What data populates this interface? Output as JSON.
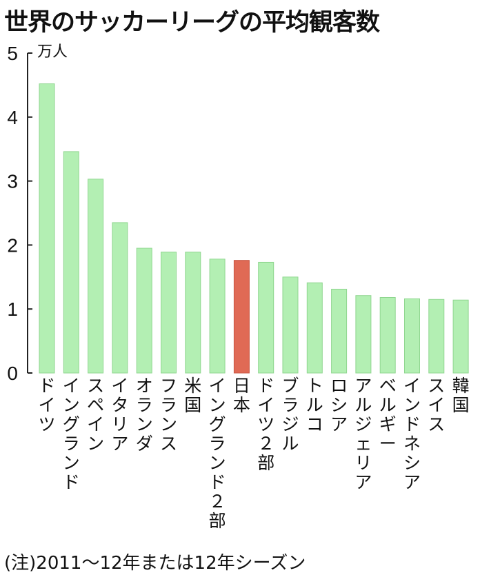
{
  "title": "世界のサッカーリーグの平均観客数",
  "note": "(注)2011〜12年または12年シーズン",
  "colors": {
    "bar": "#b3efb3",
    "bar_edge": "#8fd68f",
    "highlight": "#e06a55",
    "axis": "#222222"
  },
  "chart_data": {
    "type": "bar",
    "title": "世界のサッカーリーグの平均観客数",
    "ylabel": "万人",
    "ylim": [
      0,
      5
    ],
    "yticks": [
      0,
      1,
      2,
      3,
      4,
      5
    ],
    "grid": false,
    "categories": [
      "ドイツ",
      "イングランド",
      "スペイン",
      "イタリア",
      "オランダ",
      "フランス",
      "米国",
      "イングランド２部",
      "日本",
      "ドイツ２部",
      "ブラジル",
      "トルコ",
      "ロシア",
      "アルジェリア",
      "ベルギー",
      "インドネシア",
      "スイス",
      "韓国"
    ],
    "values": [
      4.52,
      3.46,
      3.03,
      2.35,
      1.95,
      1.89,
      1.89,
      1.78,
      1.76,
      1.73,
      1.5,
      1.41,
      1.31,
      1.21,
      1.18,
      1.16,
      1.15,
      1.14
    ],
    "highlight": "日本"
  }
}
